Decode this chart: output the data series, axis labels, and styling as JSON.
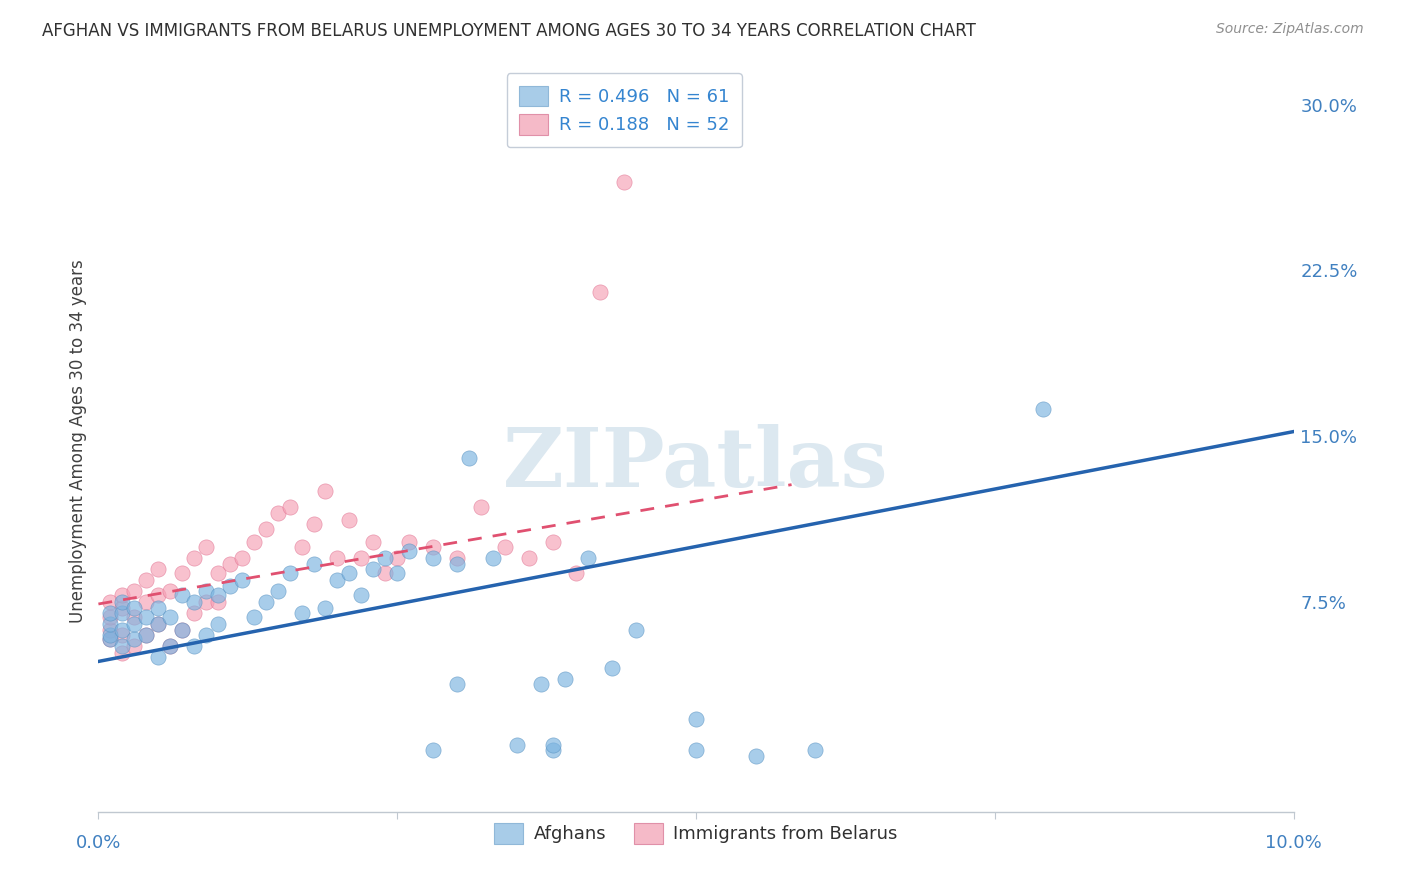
{
  "title": "AFGHAN VS IMMIGRANTS FROM BELARUS UNEMPLOYMENT AMONG AGES 30 TO 34 YEARS CORRELATION CHART",
  "source": "Source: ZipAtlas.com",
  "ylabel": "Unemployment Among Ages 30 to 34 years",
  "xmin": 0.0,
  "xmax": 0.1,
  "ymin": -0.02,
  "ymax": 0.315,
  "yticks": [
    0.075,
    0.15,
    0.225,
    0.3
  ],
  "ytick_labels": [
    "7.5%",
    "15.0%",
    "22.5%",
    "30.0%"
  ],
  "xtick_label_left": "0.0%",
  "xtick_label_right": "10.0%",
  "afghans_color": "#7ab3e0",
  "afghans_edge_color": "#5590c0",
  "belarus_color": "#f5a0b5",
  "belarus_edge_color": "#e07090",
  "trendline_afghan_color": "#2563ae",
  "trendline_belarus_color": "#e05070",
  "legend_patch_afghan": "#a8cce8",
  "legend_patch_belarus": "#f5bac8",
  "watermark_color": "#dce8f0",
  "grid_color": "#d0d8e0",
  "bottom_spine_color": "#c0c8d0",
  "right_tick_color": "#4080c0",
  "title_color": "#303030",
  "source_color": "#909090",
  "xlabel_color": "#4080c0",
  "ylabel_color": "#404040",
  "legend_R_N_color": "#3585d0",
  "legend_label_color": "#303030",
  "afghan_trend_x0": 0.0,
  "afghan_trend_y0": 0.048,
  "afghan_trend_x1": 0.1,
  "afghan_trend_y1": 0.152,
  "belarus_trend_x0": 0.0,
  "belarus_trend_y0": 0.074,
  "belarus_trend_x1": 0.058,
  "belarus_trend_y1": 0.128,
  "afghan_R": "0.496",
  "afghan_N": "61",
  "belarus_R": "0.188",
  "belarus_N": "52",
  "legend_label_afghan": "Afghans",
  "legend_label_belarus": "Immigrants from Belarus",
  "marker_size": 120,
  "marker_alpha": 0.65,
  "afghans_x": [
    0.001,
    0.001,
    0.001,
    0.001,
    0.002,
    0.002,
    0.002,
    0.002,
    0.003,
    0.003,
    0.003,
    0.004,
    0.004,
    0.005,
    0.005,
    0.005,
    0.006,
    0.006,
    0.007,
    0.007,
    0.008,
    0.008,
    0.009,
    0.009,
    0.01,
    0.01,
    0.011,
    0.012,
    0.013,
    0.014,
    0.015,
    0.016,
    0.017,
    0.018,
    0.019,
    0.02,
    0.021,
    0.022,
    0.023,
    0.024,
    0.025,
    0.026,
    0.028,
    0.03,
    0.031,
    0.033,
    0.035,
    0.037,
    0.039,
    0.041,
    0.043,
    0.045,
    0.05,
    0.055,
    0.06,
    0.038,
    0.03,
    0.028,
    0.05,
    0.038,
    0.079
  ],
  "afghans_y": [
    0.058,
    0.06,
    0.065,
    0.07,
    0.055,
    0.062,
    0.07,
    0.075,
    0.058,
    0.065,
    0.072,
    0.06,
    0.068,
    0.05,
    0.065,
    0.072,
    0.055,
    0.068,
    0.062,
    0.078,
    0.055,
    0.075,
    0.06,
    0.08,
    0.065,
    0.078,
    0.082,
    0.085,
    0.068,
    0.075,
    0.08,
    0.088,
    0.07,
    0.092,
    0.072,
    0.085,
    0.088,
    0.078,
    0.09,
    0.095,
    0.088,
    0.098,
    0.095,
    0.092,
    0.14,
    0.095,
    0.01,
    0.038,
    0.04,
    0.095,
    0.045,
    0.062,
    0.022,
    0.005,
    0.008,
    0.008,
    0.038,
    0.008,
    0.008,
    0.01,
    0.162
  ],
  "belarus_x": [
    0.001,
    0.001,
    0.001,
    0.001,
    0.002,
    0.002,
    0.002,
    0.002,
    0.003,
    0.003,
    0.003,
    0.004,
    0.004,
    0.004,
    0.005,
    0.005,
    0.005,
    0.006,
    0.006,
    0.007,
    0.007,
    0.008,
    0.008,
    0.009,
    0.009,
    0.01,
    0.01,
    0.011,
    0.012,
    0.013,
    0.014,
    0.015,
    0.016,
    0.017,
    0.018,
    0.019,
    0.02,
    0.021,
    0.022,
    0.023,
    0.024,
    0.025,
    0.026,
    0.028,
    0.03,
    0.032,
    0.034,
    0.036,
    0.038,
    0.04,
    0.042,
    0.044
  ],
  "belarus_y": [
    0.058,
    0.062,
    0.068,
    0.075,
    0.052,
    0.06,
    0.072,
    0.078,
    0.055,
    0.068,
    0.08,
    0.06,
    0.075,
    0.085,
    0.065,
    0.078,
    0.09,
    0.055,
    0.08,
    0.062,
    0.088,
    0.07,
    0.095,
    0.075,
    0.1,
    0.075,
    0.088,
    0.092,
    0.095,
    0.102,
    0.108,
    0.115,
    0.118,
    0.1,
    0.11,
    0.125,
    0.095,
    0.112,
    0.095,
    0.102,
    0.088,
    0.095,
    0.102,
    0.1,
    0.095,
    0.118,
    0.1,
    0.095,
    0.102,
    0.088,
    0.215,
    0.265
  ]
}
